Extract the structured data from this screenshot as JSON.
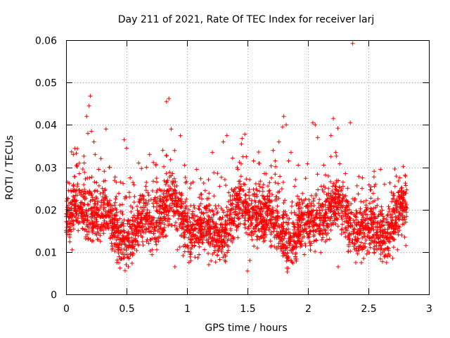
{
  "chart_data": {
    "type": "scatter",
    "title": "Day 211 of 2021, Rate Of TEC Index for receiver larj",
    "xlabel": "GPS time / hours",
    "ylabel": "ROTI / TECUs",
    "xlim": [
      0,
      3
    ],
    "ylim": [
      0,
      0.06
    ],
    "xticks": [
      "0",
      "0.5",
      "1",
      "1.5",
      "2",
      "2.5",
      "3"
    ],
    "yticks": [
      "0",
      "0.01",
      "0.02",
      "0.03",
      "0.04",
      "0.05",
      "0.06"
    ],
    "grid": true,
    "marker": "+",
    "color": "#ff0000",
    "x_range_of_data": [
      0,
      2.82
    ],
    "points": [
      [
        0.01,
        0.0225
      ],
      [
        0.02,
        0.0245
      ],
      [
        0.03,
        0.0135
      ],
      [
        0.05,
        0.0105
      ],
      [
        0.06,
        0.033
      ],
      [
        0.08,
        0.0175
      ],
      [
        0.11,
        0.0285
      ],
      [
        0.13,
        0.0205
      ],
      [
        0.15,
        0.031
      ],
      [
        0.17,
        0.042
      ],
      [
        0.18,
        0.038
      ],
      [
        0.19,
        0.0445
      ],
      [
        0.2,
        0.0468
      ],
      [
        0.21,
        0.0385
      ],
      [
        0.23,
        0.036
      ],
      [
        0.24,
        0.033
      ],
      [
        0.27,
        0.0295
      ],
      [
        0.3,
        0.025
      ],
      [
        0.32,
        0.0205
      ],
      [
        0.33,
        0.039
      ],
      [
        0.35,
        0.0155
      ],
      [
        0.38,
        0.0105
      ],
      [
        0.41,
        0.0225
      ],
      [
        0.42,
        0.0075
      ],
      [
        0.45,
        0.0265
      ],
      [
        0.48,
        0.0365
      ],
      [
        0.5,
        0.0345
      ],
      [
        0.53,
        0.0275
      ],
      [
        0.57,
        0.018
      ],
      [
        0.6,
        0.031
      ],
      [
        0.63,
        0.0135
      ],
      [
        0.66,
        0.0255
      ],
      [
        0.69,
        0.033
      ],
      [
        0.72,
        0.0215
      ],
      [
        0.75,
        0.0105
      ],
      [
        0.78,
        0.0245
      ],
      [
        0.8,
        0.034
      ],
      [
        0.83,
        0.0455
      ],
      [
        0.85,
        0.0462
      ],
      [
        0.87,
        0.039
      ],
      [
        0.88,
        0.0285
      ],
      [
        0.9,
        0.0065
      ],
      [
        0.92,
        0.0105
      ],
      [
        0.95,
        0.0225
      ],
      [
        0.98,
        0.0305
      ],
      [
        1.02,
        0.018
      ],
      [
        1.05,
        0.0265
      ],
      [
        1.08,
        0.0295
      ],
      [
        1.12,
        0.0135
      ],
      [
        1.15,
        0.0245
      ],
      [
        1.18,
        0.007
      ],
      [
        1.21,
        0.0335
      ],
      [
        1.24,
        0.0165
      ],
      [
        1.27,
        0.0255
      ],
      [
        1.3,
        0.036
      ],
      [
        1.33,
        0.0375
      ],
      [
        1.36,
        0.0155
      ],
      [
        1.39,
        0.0225
      ],
      [
        1.42,
        0.0295
      ],
      [
        1.45,
        0.0355
      ],
      [
        1.48,
        0.0195
      ],
      [
        1.5,
        0.0055
      ],
      [
        1.52,
        0.008
      ],
      [
        1.55,
        0.0315
      ],
      [
        1.58,
        0.0245
      ],
      [
        1.61,
        0.0135
      ],
      [
        1.64,
        0.0285
      ],
      [
        1.67,
        0.0225
      ],
      [
        1.7,
        0.0195
      ],
      [
        1.73,
        0.0315
      ],
      [
        1.76,
        0.036
      ],
      [
        1.79,
        0.0395
      ],
      [
        1.8,
        0.042
      ],
      [
        1.82,
        0.04
      ],
      [
        1.84,
        0.0315
      ],
      [
        1.86,
        0.0335
      ],
      [
        1.89,
        0.0255
      ],
      [
        1.92,
        0.0305
      ],
      [
        1.95,
        0.0175
      ],
      [
        1.98,
        0.0225
      ],
      [
        2.01,
        0.0135
      ],
      [
        2.04,
        0.0405
      ],
      [
        2.06,
        0.04
      ],
      [
        2.08,
        0.037
      ],
      [
        2.11,
        0.0255
      ],
      [
        2.13,
        0.0305
      ],
      [
        2.16,
        0.0225
      ],
      [
        2.19,
        0.0375
      ],
      [
        2.21,
        0.0415
      ],
      [
        2.23,
        0.0335
      ],
      [
        2.25,
        0.0065
      ],
      [
        2.27,
        0.0205
      ],
      [
        2.29,
        0.0255
      ],
      [
        2.31,
        0.0285
      ],
      [
        2.33,
        0.0135
      ],
      [
        2.35,
        0.0405
      ],
      [
        2.37,
        0.0592
      ],
      [
        2.39,
        0.0225
      ],
      [
        2.42,
        0.0165
      ],
      [
        2.45,
        0.0275
      ],
      [
        2.48,
        0.0205
      ],
      [
        2.5,
        0.0135
      ],
      [
        2.52,
        0.0175
      ],
      [
        2.55,
        0.0255
      ],
      [
        2.57,
        0.0105
      ],
      [
        2.6,
        0.0295
      ],
      [
        2.62,
        0.0135
      ],
      [
        2.65,
        0.0075
      ],
      [
        2.67,
        0.0195
      ],
      [
        2.7,
        0.0085
      ],
      [
        2.72,
        0.0255
      ],
      [
        2.74,
        0.0105
      ],
      [
        2.76,
        0.0275
      ],
      [
        2.78,
        0.0165
      ],
      [
        2.8,
        0.0135
      ],
      [
        2.81,
        0.0115
      ]
    ],
    "density": {
      "comment": "approximate envelope of the dense point cloud across time (hours -> ROTI band)",
      "x_start": 0,
      "x_end": 2.82,
      "count": 3300,
      "band_low": 0.008,
      "band_high": 0.026,
      "band_center": 0.016
    }
  }
}
